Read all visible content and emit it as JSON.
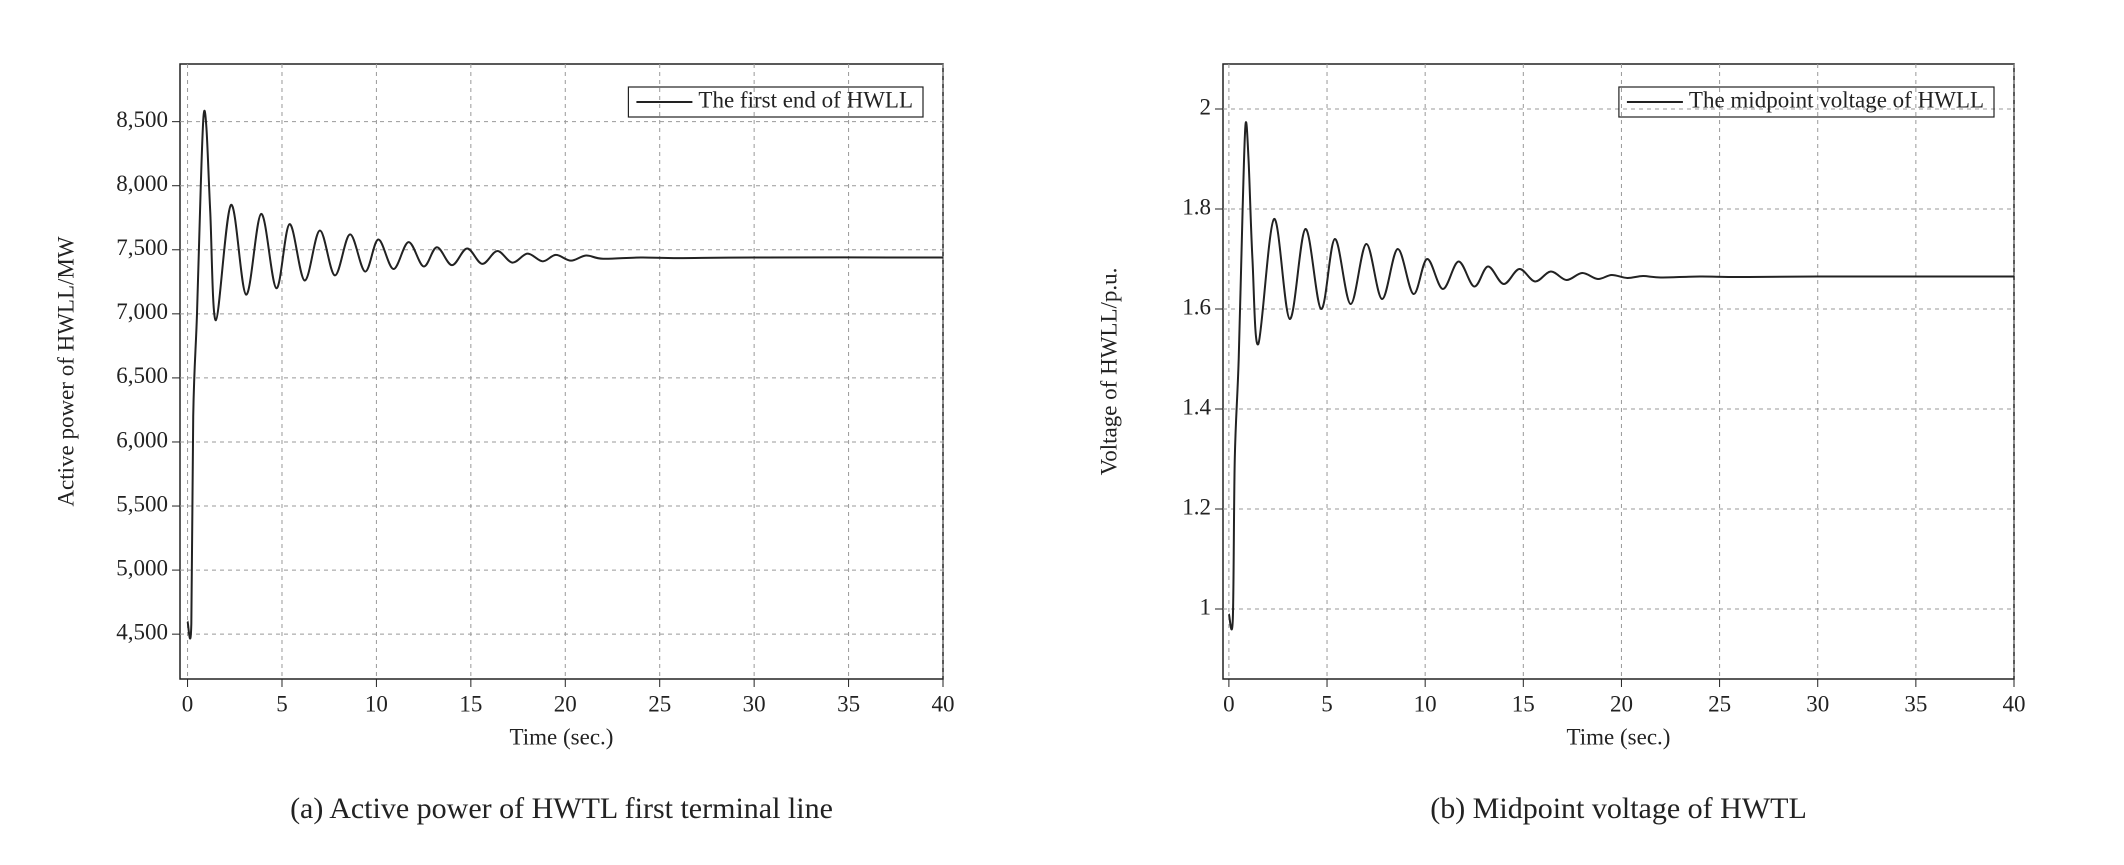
{
  "chart_data": [
    {
      "type": "line",
      "caption": "(a) Active power of HWTL first terminal line",
      "xlabel": "Time (sec.)",
      "ylabel": "Active power of HWLL/MW",
      "x": [
        0,
        0.2,
        0.3,
        0.5,
        0.7,
        0.85,
        1.0,
        1.2,
        1.5,
        2.3,
        3.1,
        3.9,
        4.7,
        5.4,
        6.2,
        7.0,
        7.8,
        8.6,
        9.4,
        10.1,
        10.9,
        11.7,
        12.5,
        13.2,
        14.0,
        14.8,
        15.6,
        16.4,
        17.2,
        18.0,
        18.8,
        19.5,
        20.3,
        21.1,
        22,
        24,
        26,
        30,
        40
      ],
      "series": [
        {
          "name": "The first end of HWLL",
          "color": "#222222",
          "values": [
            4600,
            4580,
            6200,
            7000,
            8000,
            8550,
            8450,
            7800,
            6950,
            7850,
            7150,
            7780,
            7200,
            7700,
            7260,
            7650,
            7300,
            7620,
            7330,
            7580,
            7350,
            7560,
            7370,
            7520,
            7380,
            7510,
            7390,
            7490,
            7400,
            7470,
            7410,
            7460,
            7415,
            7455,
            7430,
            7440,
            7435,
            7440,
            7440
          ]
        }
      ],
      "xlim": [
        -0.4,
        40
      ],
      "ylim": [
        4150,
        8950
      ],
      "xticks": [
        0,
        5,
        10,
        15,
        20,
        25,
        30,
        35,
        40
      ],
      "yticks": [
        {
          "value": 4500,
          "label": "4,500"
        },
        {
          "value": 5000,
          "label": "5,000"
        },
        {
          "value": 5500,
          "label": "5,500"
        },
        {
          "value": 6000,
          "label": "6,000"
        },
        {
          "value": 6500,
          "label": "6,500"
        },
        {
          "value": 7000,
          "label": "7,000"
        },
        {
          "value": 7500,
          "label": "7,500"
        },
        {
          "value": 8000,
          "label": "8,000"
        },
        {
          "value": 8500,
          "label": "8,500"
        }
      ],
      "grid": true,
      "legend": "upper right"
    },
    {
      "type": "line",
      "caption": "(b) Midpoint voltage of HWTL",
      "xlabel": "Time (sec.)",
      "ylabel": "Voltage of HWLL/p.u.",
      "x": [
        0,
        0.2,
        0.3,
        0.5,
        0.7,
        0.85,
        1.0,
        1.2,
        1.5,
        2.3,
        3.1,
        3.9,
        4.7,
        5.4,
        6.2,
        7.0,
        7.8,
        8.6,
        9.4,
        10.1,
        10.9,
        11.7,
        12.5,
        13.2,
        14.0,
        14.8,
        15.6,
        16.4,
        17.2,
        18.0,
        18.8,
        19.5,
        20.3,
        21.1,
        22,
        24,
        26,
        30,
        40
      ],
      "series": [
        {
          "name": "The midpoint voltage of HWLL",
          "color": "#222222",
          "values": [
            0.99,
            0.98,
            1.3,
            1.5,
            1.8,
            1.97,
            1.9,
            1.7,
            1.53,
            1.78,
            1.58,
            1.76,
            1.6,
            1.74,
            1.61,
            1.73,
            1.62,
            1.72,
            1.63,
            1.7,
            1.64,
            1.695,
            1.645,
            1.685,
            1.65,
            1.68,
            1.655,
            1.675,
            1.658,
            1.672,
            1.66,
            1.668,
            1.662,
            1.666,
            1.663,
            1.665,
            1.664,
            1.665,
            1.665
          ]
        }
      ],
      "xlim": [
        -0.3,
        40
      ],
      "ylim": [
        0.86,
        2.09
      ],
      "xticks": [
        0,
        5,
        10,
        15,
        20,
        25,
        30,
        35,
        40
      ],
      "yticks": [
        1,
        1.2,
        1.4,
        1.6,
        1.8,
        2
      ],
      "grid": true,
      "legend": "upper right"
    }
  ]
}
